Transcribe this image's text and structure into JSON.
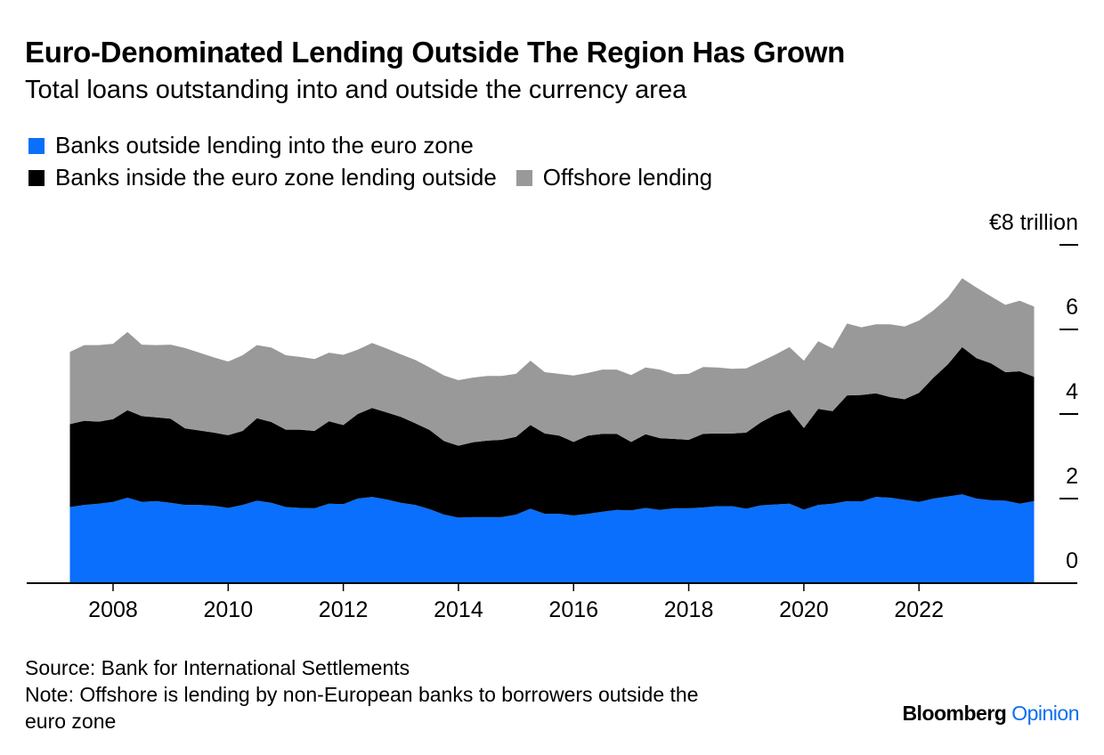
{
  "title": "Euro-Denominated Lending Outside The Region Has Grown",
  "subtitle": "Total loans outstanding into and outside the currency area",
  "legend": [
    {
      "label": "Banks outside lending into the euro zone",
      "color": "#0a6ffc"
    },
    {
      "label": "Banks inside the euro zone lending outside",
      "color": "#000000"
    },
    {
      "label": "Offshore lending",
      "color": "#999999"
    }
  ],
  "source": "Source: Bank for International Settlements",
  "note_line1": "Note: Offshore is lending by non-European banks to borrowers outside the",
  "note_line2": "euro zone",
  "brand": {
    "name": "Bloomberg",
    "suffix": "Opinion"
  },
  "chart_data": {
    "type": "area",
    "stacked": true,
    "y_unit_label": "€8 trillion",
    "ylim": [
      0,
      8
    ],
    "yticks": [
      0,
      2,
      4,
      6,
      8
    ],
    "ytick_labels": [
      "0",
      "2",
      "4",
      "6",
      "€8 trillion"
    ],
    "xlim": [
      2006.5,
      2024.75
    ],
    "xticks": [
      2008,
      2010,
      2012,
      2014,
      2016,
      2018,
      2020,
      2022
    ],
    "grid": false,
    "legend_position": "top",
    "x": [
      2007.25,
      2007.5,
      2007.75,
      2008.0,
      2008.25,
      2008.5,
      2008.75,
      2009.0,
      2009.25,
      2009.5,
      2009.75,
      2010.0,
      2010.25,
      2010.5,
      2010.75,
      2011.0,
      2011.25,
      2011.5,
      2011.75,
      2012.0,
      2012.25,
      2012.5,
      2012.75,
      2013.0,
      2013.25,
      2013.5,
      2013.75,
      2014.0,
      2014.25,
      2014.5,
      2014.75,
      2015.0,
      2015.25,
      2015.5,
      2015.75,
      2016.0,
      2016.25,
      2016.5,
      2016.75,
      2017.0,
      2017.25,
      2017.5,
      2017.75,
      2018.0,
      2018.25,
      2018.5,
      2018.75,
      2019.0,
      2019.25,
      2019.5,
      2019.75,
      2020.0,
      2020.25,
      2020.5,
      2020.75,
      2021.0,
      2021.25,
      2021.5,
      2021.75,
      2022.0,
      2022.25,
      2022.5,
      2022.75,
      2023.0,
      2023.25,
      2023.5,
      2023.75,
      2024.0
    ],
    "series": [
      {
        "name": "Banks outside lending into the euro zone",
        "color": "#0a6ffc",
        "values": [
          1.8,
          1.85,
          1.88,
          1.92,
          2.02,
          1.92,
          1.94,
          1.9,
          1.85,
          1.85,
          1.83,
          1.78,
          1.85,
          1.95,
          1.9,
          1.8,
          1.78,
          1.77,
          1.88,
          1.87,
          2.0,
          2.04,
          1.98,
          1.9,
          1.85,
          1.75,
          1.62,
          1.55,
          1.56,
          1.56,
          1.56,
          1.62,
          1.76,
          1.64,
          1.64,
          1.6,
          1.64,
          1.69,
          1.73,
          1.72,
          1.78,
          1.73,
          1.77,
          1.77,
          1.79,
          1.82,
          1.82,
          1.76,
          1.84,
          1.86,
          1.88,
          1.74,
          1.85,
          1.88,
          1.94,
          1.93,
          2.04,
          2.02,
          1.97,
          1.92,
          2.0,
          2.05,
          2.1,
          2.0,
          1.96,
          1.95,
          1.88,
          1.94
        ]
      },
      {
        "name": "Banks inside the euro zone lending outside",
        "color": "#000000",
        "values": [
          1.96,
          1.99,
          1.94,
          1.96,
          2.07,
          2.03,
          1.98,
          1.99,
          1.81,
          1.76,
          1.73,
          1.72,
          1.75,
          1.95,
          1.91,
          1.83,
          1.85,
          1.83,
          1.95,
          1.87,
          2.0,
          2.1,
          2.06,
          2.03,
          1.93,
          1.87,
          1.74,
          1.7,
          1.77,
          1.81,
          1.83,
          1.84,
          1.98,
          1.9,
          1.85,
          1.74,
          1.85,
          1.84,
          1.8,
          1.62,
          1.74,
          1.7,
          1.64,
          1.62,
          1.74,
          1.72,
          1.72,
          1.8,
          1.96,
          2.12,
          2.22,
          1.93,
          2.27,
          2.19,
          2.5,
          2.52,
          2.45,
          2.38,
          2.38,
          2.58,
          2.86,
          3.12,
          3.48,
          3.32,
          3.24,
          3.04,
          3.13,
          2.94
        ]
      },
      {
        "name": "Offshore lending",
        "color": "#999999",
        "values": [
          1.71,
          1.79,
          1.81,
          1.78,
          1.85,
          1.69,
          1.71,
          1.75,
          1.9,
          1.84,
          1.78,
          1.74,
          1.79,
          1.73,
          1.76,
          1.76,
          1.72,
          1.7,
          1.62,
          1.66,
          1.52,
          1.54,
          1.51,
          1.48,
          1.5,
          1.48,
          1.55,
          1.55,
          1.53,
          1.53,
          1.51,
          1.49,
          1.52,
          1.45,
          1.46,
          1.57,
          1.48,
          1.52,
          1.52,
          1.58,
          1.58,
          1.62,
          1.53,
          1.56,
          1.58,
          1.56,
          1.53,
          1.52,
          1.44,
          1.42,
          1.48,
          1.59,
          1.6,
          1.48,
          1.7,
          1.6,
          1.63,
          1.72,
          1.72,
          1.71,
          1.59,
          1.58,
          1.63,
          1.67,
          1.58,
          1.59,
          1.67,
          1.66
        ]
      }
    ]
  }
}
